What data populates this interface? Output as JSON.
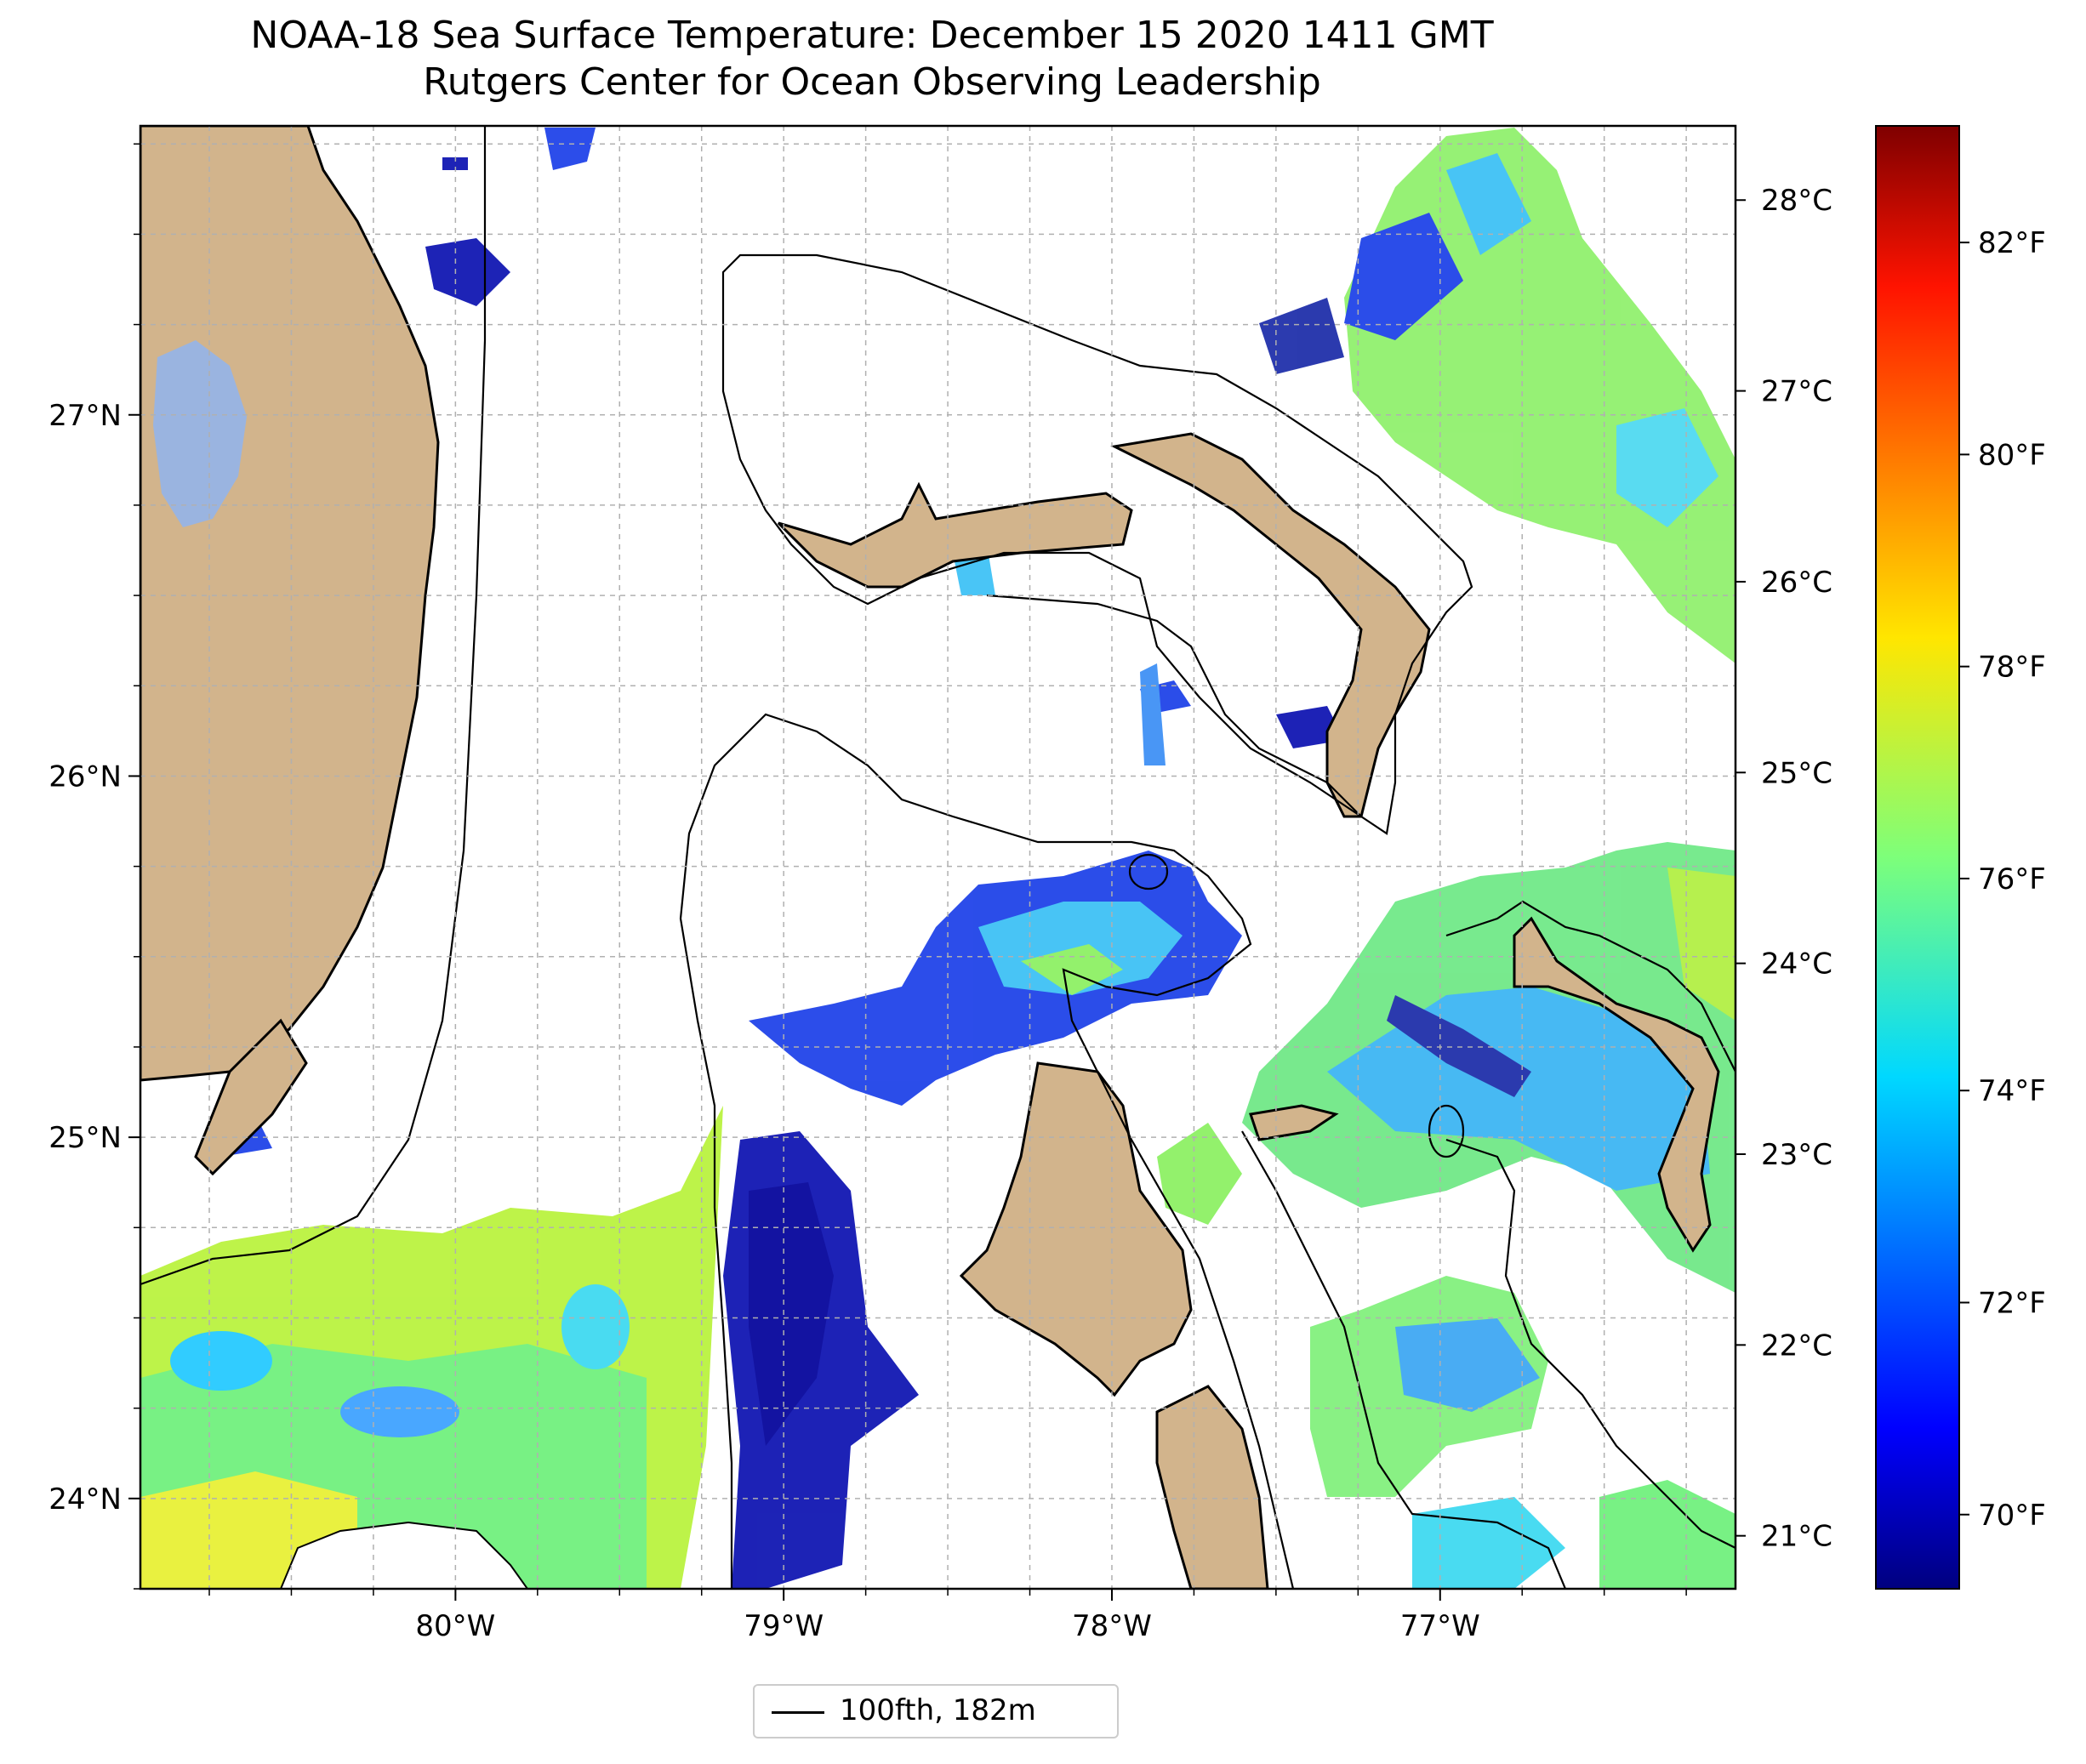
{
  "title": {
    "line1": "NOAA-18 Sea Surface Temperature: December 15 2020 1411 GMT",
    "line2": "Rutgers Center for Ocean Observing Leadership"
  },
  "map": {
    "lon_range": [
      -80.96,
      -76.1
    ],
    "lat_range": [
      23.75,
      27.8
    ],
    "lon_ticks": [
      {
        "value": -80,
        "label": "80°W"
      },
      {
        "value": -79,
        "label": "79°W"
      },
      {
        "value": -78,
        "label": "78°W"
      },
      {
        "value": -77,
        "label": "77°W"
      }
    ],
    "lat_ticks": [
      {
        "value": 24,
        "label": "24°N"
      },
      {
        "value": 25,
        "label": "25°N"
      },
      {
        "value": 26,
        "label": "26°N"
      },
      {
        "value": 27,
        "label": "27°N"
      }
    ],
    "gridlines": true,
    "land_color": "#d2b48c",
    "lake_color": "#9ab4e0",
    "contour_color": "#000000"
  },
  "colorbar": {
    "colormap": "jet",
    "range_f": [
      69.3,
      83.1
    ],
    "celsius_ticks": [
      {
        "value": 21,
        "label": "21°C"
      },
      {
        "value": 22,
        "label": "22°C"
      },
      {
        "value": 23,
        "label": "23°C"
      },
      {
        "value": 24,
        "label": "24°C"
      },
      {
        "value": 25,
        "label": "25°C"
      },
      {
        "value": 26,
        "label": "26°C"
      },
      {
        "value": 27,
        "label": "27°C"
      },
      {
        "value": 28,
        "label": "28°C"
      }
    ],
    "fahrenheit_ticks": [
      {
        "value": 70,
        "label": "70°F"
      },
      {
        "value": 72,
        "label": "72°F"
      },
      {
        "value": 74,
        "label": "74°F"
      },
      {
        "value": 76,
        "label": "76°F"
      },
      {
        "value": 78,
        "label": "78°F"
      },
      {
        "value": 80,
        "label": "80°F"
      },
      {
        "value": 82,
        "label": "82°F"
      }
    ]
  },
  "legend": {
    "label": "100fth, 182m",
    "line_color": "#000000"
  }
}
